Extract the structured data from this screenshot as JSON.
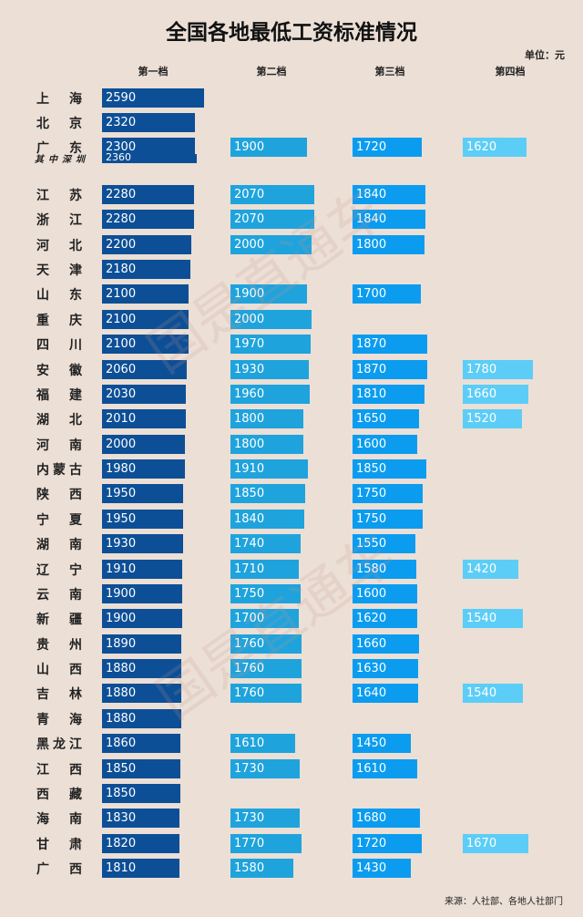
{
  "chart_data": {
    "type": "bar",
    "title": "全国各地最低工资标准情况",
    "unit": "单位：元",
    "columns": [
      "第一档",
      "第二档",
      "第三档",
      "第四档"
    ],
    "colors": [
      "#0d4f96",
      "#1fa3dc",
      "#0b9cf0",
      "#5ccdf7"
    ],
    "rows": [
      {
        "name": "上海",
        "values": [
          2590,
          null,
          null,
          null
        ]
      },
      {
        "name": "北京",
        "values": [
          2320,
          null,
          null,
          null
        ]
      },
      {
        "name": "广东",
        "values": [
          2300,
          1900,
          1720,
          1620
        ]
      },
      {
        "name": "其中深圳",
        "values": [
          2360,
          null,
          null,
          null
        ],
        "sub": true
      },
      {
        "name": "江苏",
        "values": [
          2280,
          2070,
          1840,
          null
        ]
      },
      {
        "name": "浙江",
        "values": [
          2280,
          2070,
          1840,
          null
        ]
      },
      {
        "name": "河北",
        "values": [
          2200,
          2000,
          1800,
          null
        ]
      },
      {
        "name": "天津",
        "values": [
          2180,
          null,
          null,
          null
        ]
      },
      {
        "name": "山东",
        "values": [
          2100,
          1900,
          1700,
          null
        ]
      },
      {
        "name": "重庆",
        "values": [
          2100,
          2000,
          null,
          null
        ]
      },
      {
        "name": "四川",
        "values": [
          2100,
          1970,
          1870,
          null
        ]
      },
      {
        "name": "安徽",
        "values": [
          2060,
          1930,
          1870,
          1780
        ]
      },
      {
        "name": "福建",
        "values": [
          2030,
          1960,
          1810,
          1660
        ]
      },
      {
        "name": "湖北",
        "values": [
          2010,
          1800,
          1650,
          1520
        ]
      },
      {
        "name": "河南",
        "values": [
          2000,
          1800,
          1600,
          null
        ]
      },
      {
        "name": "内蒙古",
        "values": [
          1980,
          1910,
          1850,
          null
        ]
      },
      {
        "name": "陕西",
        "values": [
          1950,
          1850,
          1750,
          null
        ]
      },
      {
        "name": "宁夏",
        "values": [
          1950,
          1840,
          1750,
          null
        ]
      },
      {
        "name": "湖南",
        "values": [
          1930,
          1740,
          1550,
          null
        ]
      },
      {
        "name": "辽宁",
        "values": [
          1910,
          1710,
          1580,
          1420
        ]
      },
      {
        "name": "云南",
        "values": [
          1900,
          1750,
          1600,
          null
        ]
      },
      {
        "name": "新疆",
        "values": [
          1900,
          1700,
          1620,
          1540
        ]
      },
      {
        "name": "贵州",
        "values": [
          1890,
          1760,
          1660,
          null
        ]
      },
      {
        "name": "山西",
        "values": [
          1880,
          1760,
          1630,
          null
        ]
      },
      {
        "name": "吉林",
        "values": [
          1880,
          1760,
          1640,
          1540
        ]
      },
      {
        "name": "青海",
        "values": [
          1880,
          null,
          null,
          null
        ]
      },
      {
        "name": "黑龙江",
        "values": [
          1860,
          1610,
          1450,
          null
        ]
      },
      {
        "name": "江西",
        "values": [
          1850,
          1730,
          1610,
          null
        ]
      },
      {
        "name": "西藏",
        "values": [
          1850,
          null,
          null,
          null
        ]
      },
      {
        "name": "海南",
        "values": [
          1830,
          1730,
          1680,
          null
        ]
      },
      {
        "name": "甘肃",
        "values": [
          1820,
          1770,
          1720,
          1670
        ]
      },
      {
        "name": "广西",
        "values": [
          1810,
          1580,
          1430,
          null
        ]
      }
    ],
    "source": "来源：人社部、各地人社部门"
  },
  "watermark": "国是直通车"
}
